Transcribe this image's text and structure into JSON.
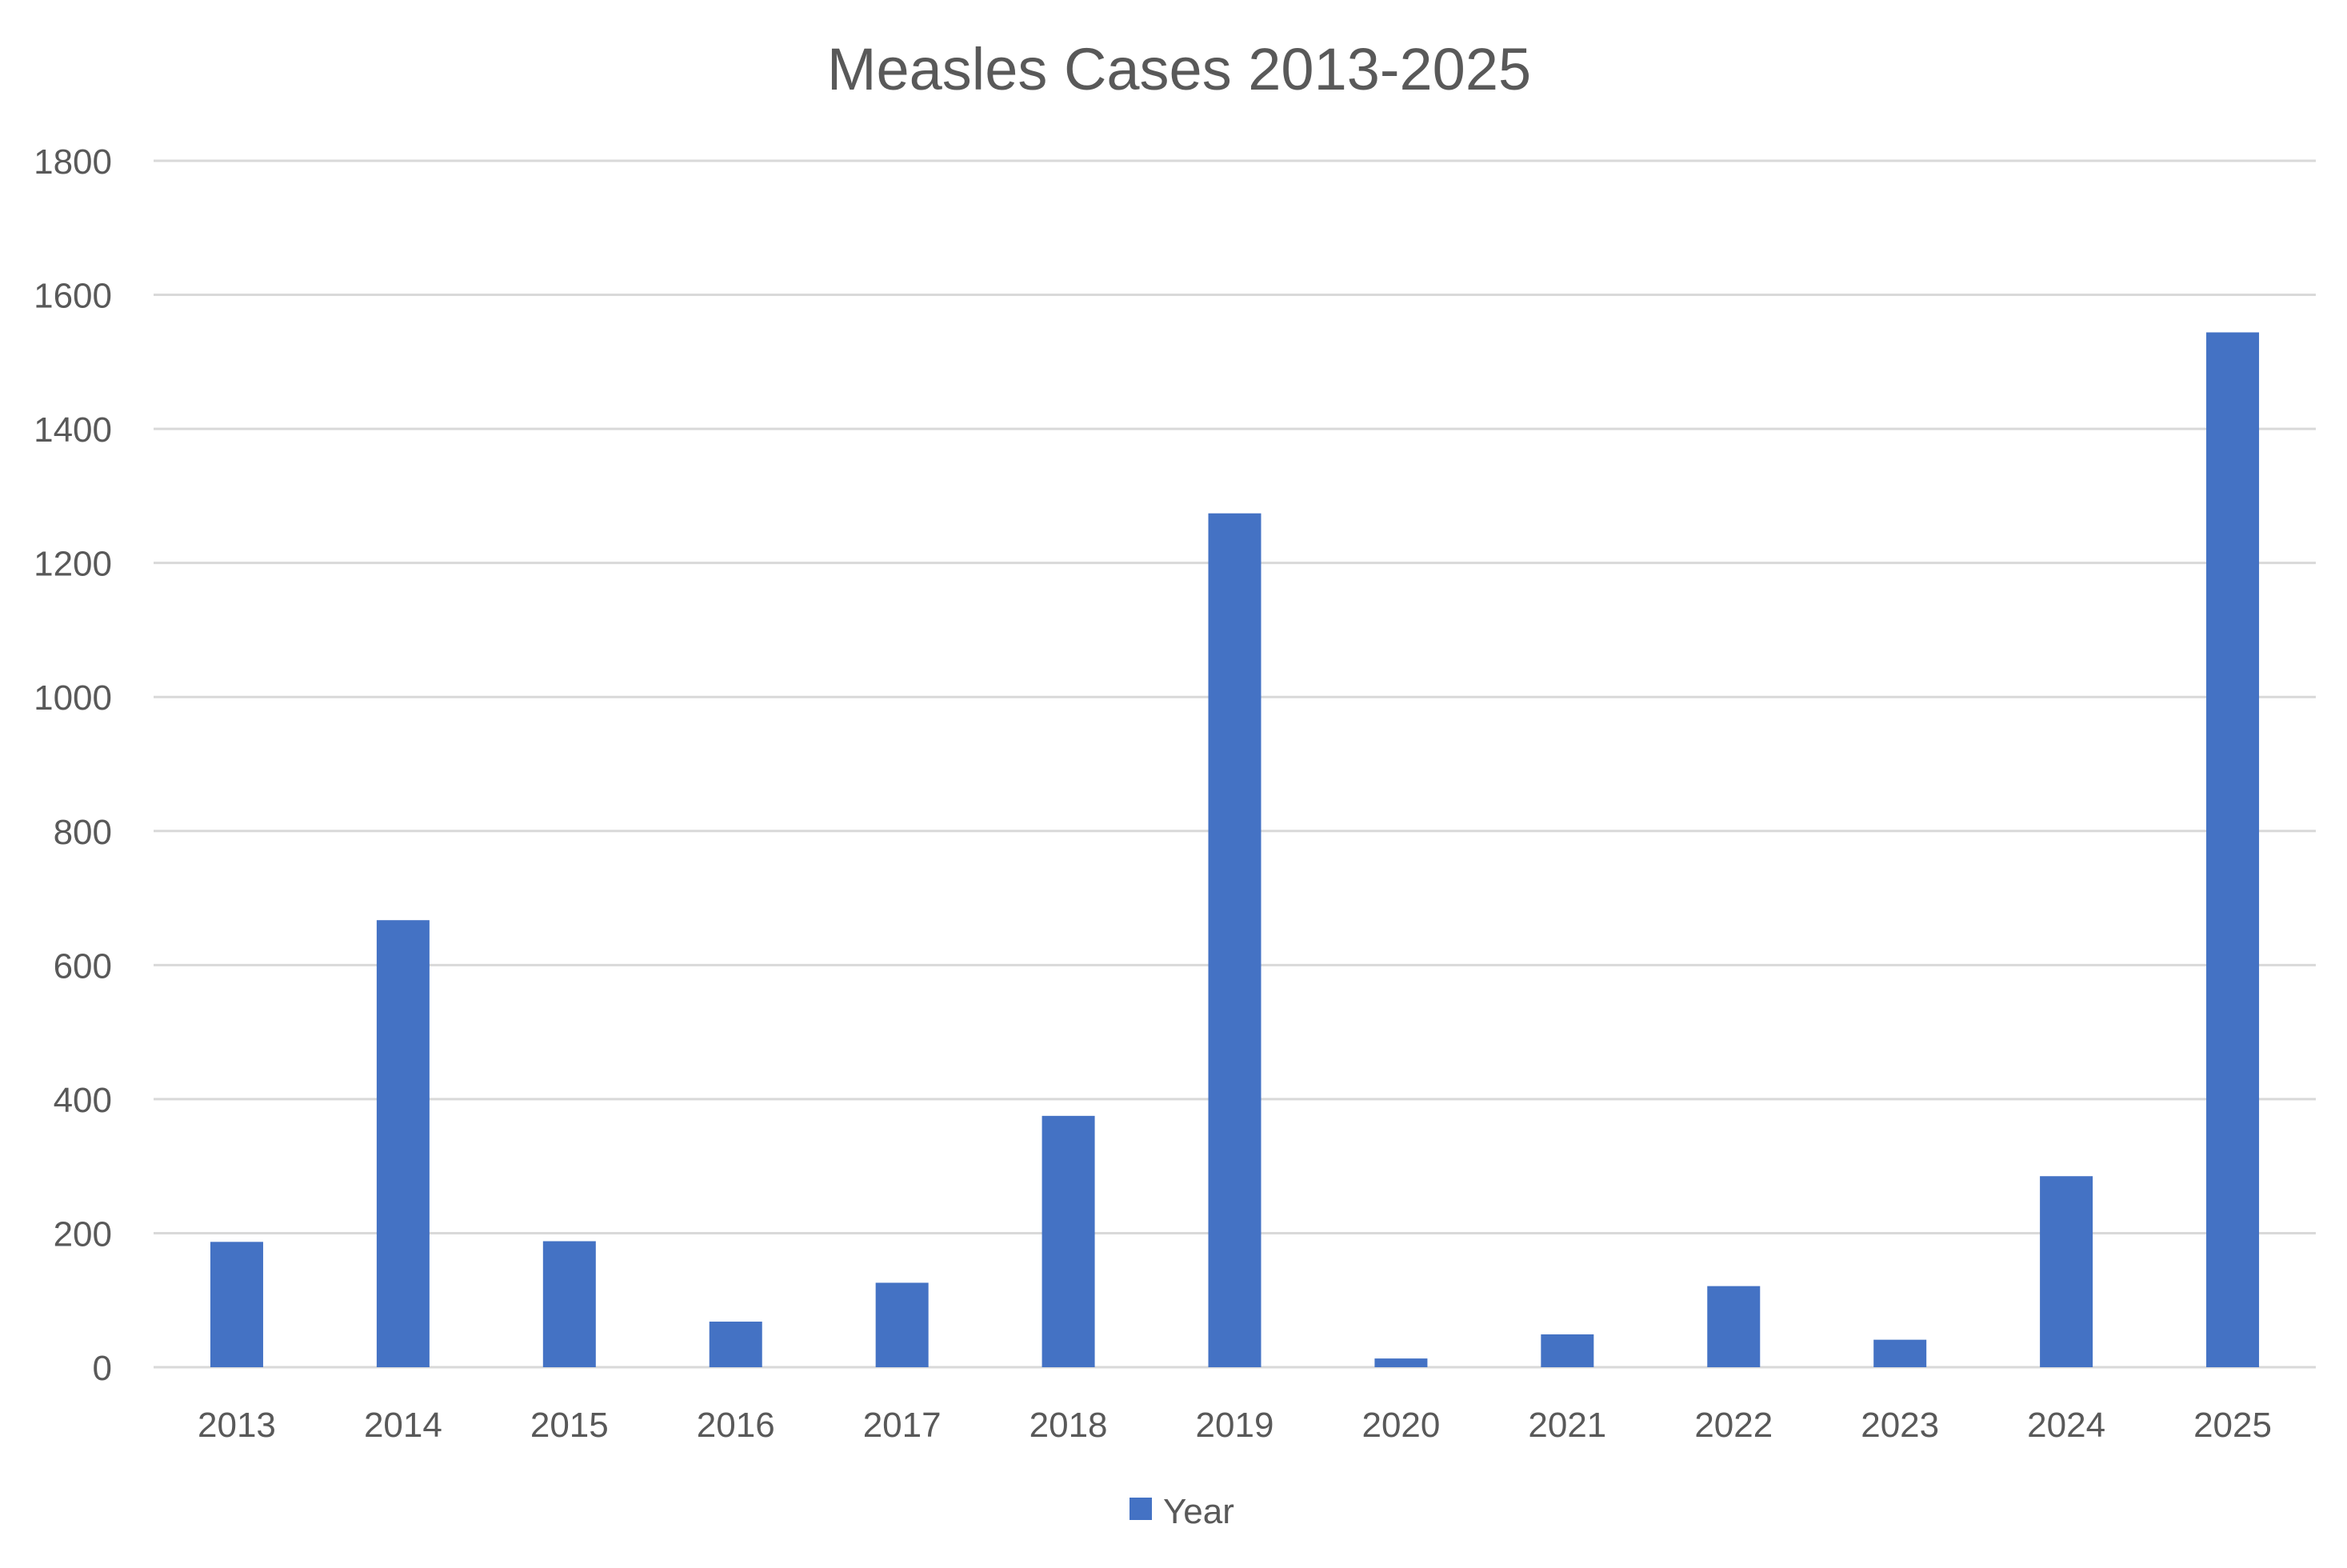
{
  "chart_data": {
    "type": "bar",
    "title": "Measles Cases 2013-2025",
    "xlabel": "",
    "ylabel": "",
    "categories": [
      "2013",
      "2014",
      "2015",
      "2016",
      "2017",
      "2018",
      "2019",
      "2020",
      "2021",
      "2022",
      "2023",
      "2024",
      "2025"
    ],
    "series": [
      {
        "name": "Year",
        "values": [
          187,
          667,
          188,
          68,
          126,
          375,
          1274,
          13,
          49,
          121,
          41,
          285,
          1544
        ],
        "color": "#4472C4"
      }
    ],
    "ylim": [
      0,
      1800
    ],
    "yticks": [
      0,
      200,
      400,
      600,
      800,
      1000,
      1200,
      1400,
      1600,
      1800
    ],
    "grid": true,
    "legend": "bottom"
  }
}
